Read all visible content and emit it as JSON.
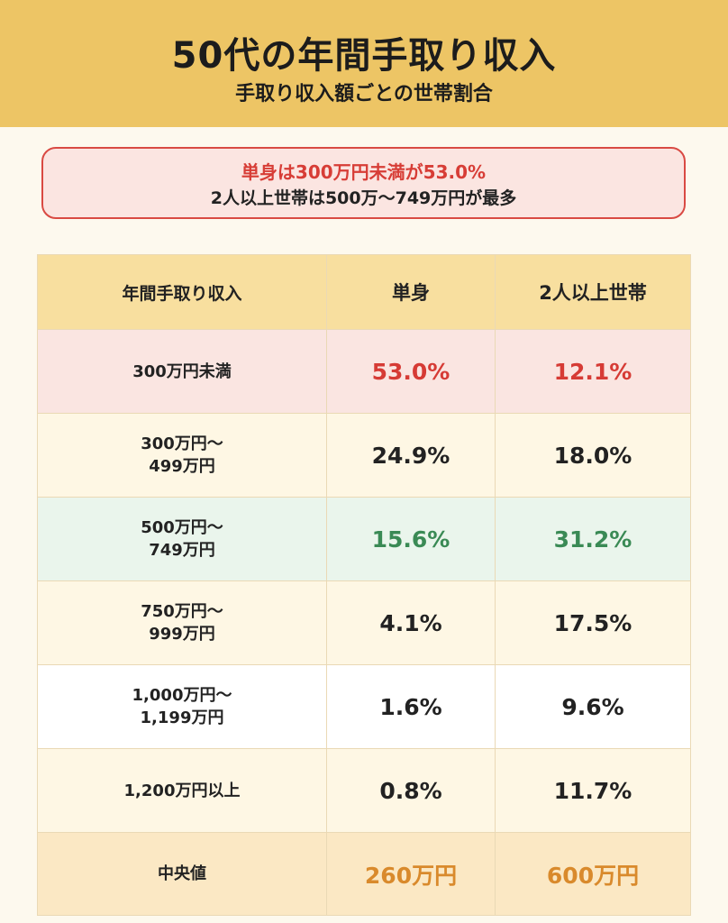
{
  "header": {
    "title": "50代の年間手取り収入",
    "subtitle": "手取り収入額ごとの世帯割合"
  },
  "callout": {
    "line1": "単身は300万円未満が53.0%",
    "line2": "2人以上世帯は500万～749万円が最多"
  },
  "chart_data": {
    "type": "table",
    "columns": [
      "年間手取り収入",
      "単身",
      "2人以上世帯"
    ],
    "rows": [
      {
        "category": "300万円未満",
        "single": "53.0%",
        "multi": "12.1%"
      },
      {
        "category": "300万円～\n499万円",
        "single": "24.9%",
        "multi": "18.0%"
      },
      {
        "category": "500万円～\n749万円",
        "single": "15.6%",
        "multi": "31.2%"
      },
      {
        "category": "750万円～\n999万円",
        "single": "4.1%",
        "multi": "17.5%"
      },
      {
        "category": "1,000万円～\n1,199万円",
        "single": "1.6%",
        "multi": "9.6%"
      },
      {
        "category": "1,200万円以上",
        "single": "0.8%",
        "multi": "11.7%"
      },
      {
        "category": "中央値",
        "single": "260万円",
        "multi": "600万円"
      }
    ]
  },
  "colors": {
    "header_bg": "#edc565",
    "highlight_red": "#d63b35",
    "highlight_green": "#3a8a55",
    "median_orange": "#d98a2c"
  }
}
